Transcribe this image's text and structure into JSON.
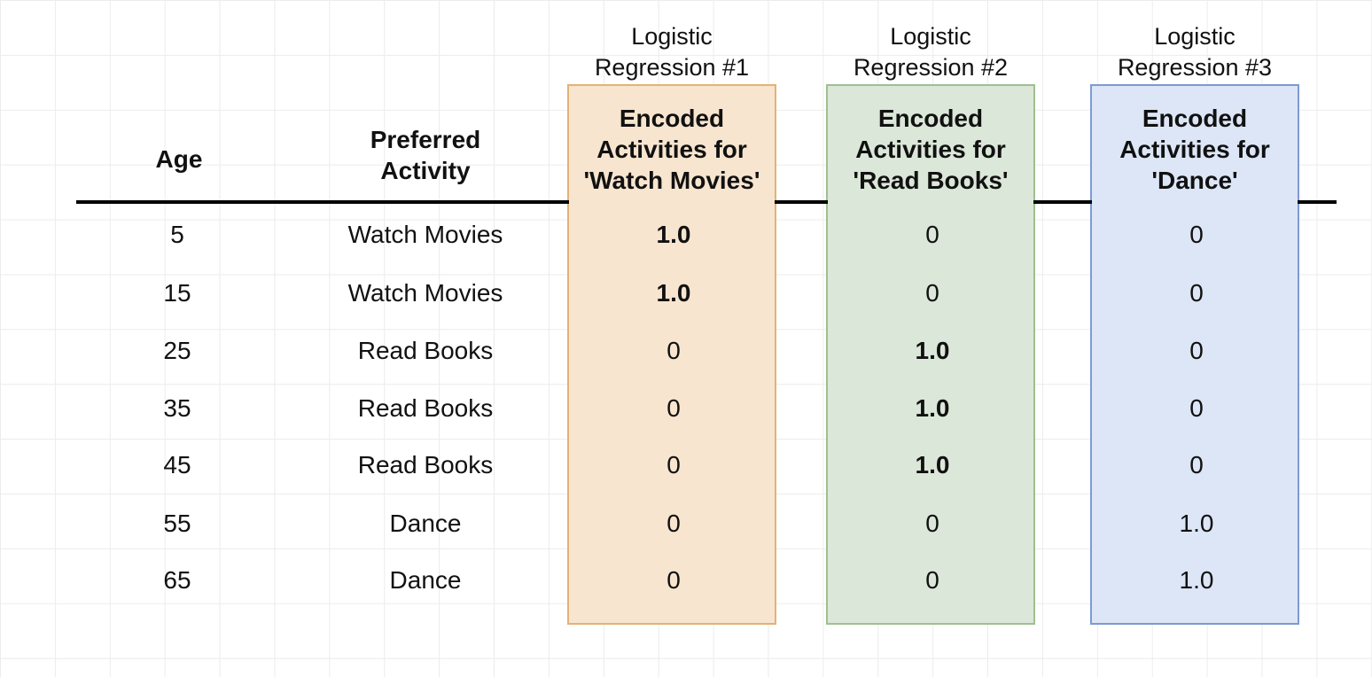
{
  "headers": {
    "age": "Age",
    "preferred_activity": [
      "Preferred",
      "Activity"
    ]
  },
  "regressions": [
    {
      "label": [
        "Logistic",
        "Regression #1"
      ],
      "header": [
        "Encoded",
        "Activities for",
        "'Watch Movies'"
      ],
      "color": "#f8e5cf",
      "border": "#e3b275"
    },
    {
      "label": [
        "Logistic",
        "Regression #2"
      ],
      "header": [
        "Encoded",
        "Activities for",
        "'Read Books'"
      ],
      "color": "#dbe7d8",
      "border": "#9fbf90"
    },
    {
      "label": [
        "Logistic",
        "Regression #3"
      ],
      "header": [
        "Encoded",
        "Activities for",
        "'Dance'"
      ],
      "color": "#dde6f7",
      "border": "#7e99d3"
    }
  ],
  "rows": [
    {
      "age": "5",
      "activity": "Watch Movies",
      "enc": [
        "1.0",
        "0",
        "0"
      ]
    },
    {
      "age": "15",
      "activity": "Watch Movies",
      "enc": [
        "1.0",
        "0",
        "0"
      ]
    },
    {
      "age": "25",
      "activity": "Read Books",
      "enc": [
        "0",
        "1.0",
        "0"
      ]
    },
    {
      "age": "35",
      "activity": "Read Books",
      "enc": [
        "0",
        "1.0",
        "0"
      ]
    },
    {
      "age": "45",
      "activity": "Read Books",
      "enc": [
        "0",
        "1.0",
        "0"
      ]
    },
    {
      "age": "55",
      "activity": "Dance",
      "enc": [
        "0",
        "0",
        "1.0"
      ]
    },
    {
      "age": "65",
      "activity": "Dance",
      "enc": [
        "0",
        "0",
        "1.0"
      ]
    }
  ]
}
